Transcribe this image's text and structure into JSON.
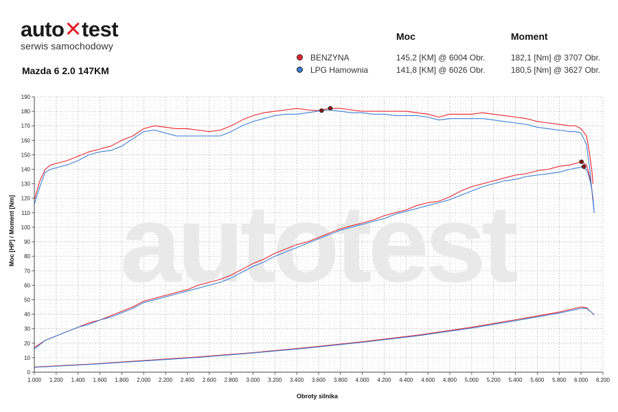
{
  "logo": {
    "main_before": "auto",
    "main_mark": "✕",
    "main_after": "test",
    "subtitle": "serwis samochodowy"
  },
  "car_title": "Mazda 6 2.0 147KM",
  "legend": {
    "header_moc": "Moc",
    "header_moment": "Moment",
    "rows": [
      {
        "name": "BENZYNA",
        "color": "#e8232d",
        "moc": "145,2 [KM] @ 6004 Obr.",
        "moment": "182,1 [Nm] @ 3707 Obr."
      },
      {
        "name": "LPG Hamownia",
        "color": "#3a7fd5",
        "moc": "141,8 [KM] @ 6026 Obr.",
        "moment": "180,5 [Nm] @ 3627 Obr."
      }
    ]
  },
  "watermark": "autotest",
  "chart_data": {
    "type": "line",
    "xlabel": "Obroty silnika",
    "ylabel": "Moc [HP] / Moment [Nm]",
    "xlim": [
      1000,
      6200
    ],
    "ylim": [
      0,
      190
    ],
    "x_ticks": [
      "1.000",
      "1.200",
      "1.400",
      "1.600",
      "1.800",
      "2.000",
      "2.200",
      "2.400",
      "2.600",
      "2.800",
      "3.000",
      "3.200",
      "3.400",
      "3.600",
      "3.800",
      "4.000",
      "4.200",
      "4.400",
      "4.600",
      "4.800",
      "5.000",
      "5.200",
      "5.400",
      "5.600",
      "5.800",
      "6.000",
      "6.200"
    ],
    "y_ticks": [
      "0",
      "10",
      "20",
      "30",
      "40",
      "50",
      "60",
      "70",
      "80",
      "90",
      "100",
      "110",
      "120",
      "130",
      "140",
      "150",
      "160",
      "170",
      "180",
      "190"
    ],
    "grid": true,
    "series": [
      {
        "name": "BENZYNA",
        "quantity": "Moment",
        "color": "#e8232d",
        "points": [
          [
            1000,
            119
          ],
          [
            1050,
            132
          ],
          [
            1100,
            140
          ],
          [
            1150,
            143
          ],
          [
            1200,
            144
          ],
          [
            1300,
            146
          ],
          [
            1400,
            149
          ],
          [
            1500,
            152
          ],
          [
            1600,
            154
          ],
          [
            1700,
            156
          ],
          [
            1800,
            160
          ],
          [
            1900,
            163
          ],
          [
            2000,
            168
          ],
          [
            2100,
            170
          ],
          [
            2200,
            169
          ],
          [
            2300,
            168
          ],
          [
            2400,
            168
          ],
          [
            2500,
            167
          ],
          [
            2600,
            166
          ],
          [
            2700,
            167
          ],
          [
            2800,
            170
          ],
          [
            2900,
            174
          ],
          [
            3000,
            177
          ],
          [
            3100,
            179
          ],
          [
            3200,
            180
          ],
          [
            3300,
            181
          ],
          [
            3400,
            182
          ],
          [
            3500,
            181
          ],
          [
            3600,
            180.5
          ],
          [
            3707,
            182.1
          ],
          [
            3800,
            182
          ],
          [
            3900,
            181
          ],
          [
            4000,
            180
          ],
          [
            4100,
            180
          ],
          [
            4200,
            180
          ],
          [
            4300,
            180
          ],
          [
            4400,
            180
          ],
          [
            4500,
            179
          ],
          [
            4600,
            178
          ],
          [
            4700,
            176
          ],
          [
            4800,
            178
          ],
          [
            4900,
            178
          ],
          [
            5000,
            178
          ],
          [
            5100,
            179
          ],
          [
            5200,
            178
          ],
          [
            5300,
            177
          ],
          [
            5400,
            176
          ],
          [
            5500,
            175
          ],
          [
            5600,
            173
          ],
          [
            5700,
            172
          ],
          [
            5800,
            171
          ],
          [
            5900,
            170
          ],
          [
            5950,
            170
          ],
          [
            6000,
            168
          ],
          [
            6050,
            163
          ],
          [
            6080,
            150
          ],
          [
            6100,
            138
          ],
          [
            6110,
            130
          ]
        ]
      },
      {
        "name": "LPG Hamownia",
        "quantity": "Moment",
        "color": "#3a7fd5",
        "points": [
          [
            1000,
            116
          ],
          [
            1050,
            128
          ],
          [
            1100,
            138
          ],
          [
            1150,
            140
          ],
          [
            1200,
            141
          ],
          [
            1300,
            143
          ],
          [
            1400,
            146
          ],
          [
            1500,
            150
          ],
          [
            1600,
            152
          ],
          [
            1700,
            153
          ],
          [
            1800,
            156
          ],
          [
            1900,
            161
          ],
          [
            2000,
            166
          ],
          [
            2100,
            167
          ],
          [
            2200,
            165
          ],
          [
            2300,
            163
          ],
          [
            2400,
            163
          ],
          [
            2500,
            163
          ],
          [
            2600,
            163
          ],
          [
            2700,
            163
          ],
          [
            2800,
            166
          ],
          [
            2900,
            170
          ],
          [
            3000,
            173
          ],
          [
            3100,
            175
          ],
          [
            3200,
            177
          ],
          [
            3300,
            178
          ],
          [
            3400,
            178
          ],
          [
            3500,
            179
          ],
          [
            3627,
            180.5
          ],
          [
            3700,
            181
          ],
          [
            3800,
            180
          ],
          [
            3900,
            179
          ],
          [
            4000,
            179
          ],
          [
            4100,
            178
          ],
          [
            4200,
            178
          ],
          [
            4300,
            177
          ],
          [
            4400,
            177
          ],
          [
            4500,
            177
          ],
          [
            4600,
            176
          ],
          [
            4700,
            174
          ],
          [
            4800,
            175
          ],
          [
            4900,
            175
          ],
          [
            5000,
            175
          ],
          [
            5100,
            175
          ],
          [
            5200,
            174
          ],
          [
            5300,
            173
          ],
          [
            5400,
            172
          ],
          [
            5500,
            171
          ],
          [
            5600,
            169
          ],
          [
            5700,
            168
          ],
          [
            5800,
            167
          ],
          [
            5900,
            166
          ],
          [
            5950,
            166
          ],
          [
            6000,
            165
          ],
          [
            6050,
            157
          ],
          [
            6080,
            140
          ],
          [
            6100,
            125
          ],
          [
            6120,
            110
          ]
        ]
      },
      {
        "name": "BENZYNA",
        "quantity": "Moc",
        "color": "#e8232d",
        "points": [
          [
            1000,
            17
          ],
          [
            1100,
            22
          ],
          [
            1200,
            25
          ],
          [
            1300,
            28
          ],
          [
            1400,
            31
          ],
          [
            1500,
            34
          ],
          [
            1600,
            36
          ],
          [
            1700,
            39
          ],
          [
            1800,
            42
          ],
          [
            1900,
            45
          ],
          [
            2000,
            49
          ],
          [
            2100,
            51
          ],
          [
            2200,
            53
          ],
          [
            2300,
            55
          ],
          [
            2400,
            57
          ],
          [
            2500,
            60
          ],
          [
            2600,
            62
          ],
          [
            2700,
            64
          ],
          [
            2800,
            67
          ],
          [
            2900,
            71
          ],
          [
            3000,
            75
          ],
          [
            3100,
            78
          ],
          [
            3200,
            82
          ],
          [
            3300,
            85
          ],
          [
            3400,
            88
          ],
          [
            3500,
            90
          ],
          [
            3600,
            93
          ],
          [
            3700,
            96
          ],
          [
            3800,
            99
          ],
          [
            3900,
            101
          ],
          [
            4000,
            103
          ],
          [
            4100,
            105
          ],
          [
            4200,
            108
          ],
          [
            4300,
            110
          ],
          [
            4400,
            112
          ],
          [
            4500,
            115
          ],
          [
            4600,
            117
          ],
          [
            4700,
            118
          ],
          [
            4800,
            121
          ],
          [
            4900,
            125
          ],
          [
            5000,
            128
          ],
          [
            5100,
            130
          ],
          [
            5200,
            132
          ],
          [
            5300,
            134
          ],
          [
            5400,
            136
          ],
          [
            5500,
            137
          ],
          [
            5600,
            139
          ],
          [
            5700,
            140
          ],
          [
            5800,
            142
          ],
          [
            5900,
            143
          ],
          [
            6004,
            145.2
          ],
          [
            6050,
            143
          ],
          [
            6080,
            135
          ],
          [
            6100,
            125
          ],
          [
            6110,
            118
          ]
        ]
      },
      {
        "name": "LPG Hamownia",
        "quantity": "Moc",
        "color": "#3a7fd5",
        "points": [
          [
            1000,
            16
          ],
          [
            1100,
            22
          ],
          [
            1200,
            25
          ],
          [
            1300,
            28
          ],
          [
            1400,
            31
          ],
          [
            1500,
            33
          ],
          [
            1600,
            36
          ],
          [
            1700,
            38
          ],
          [
            1800,
            41
          ],
          [
            1900,
            44
          ],
          [
            2000,
            48
          ],
          [
            2100,
            50
          ],
          [
            2200,
            52
          ],
          [
            2300,
            54
          ],
          [
            2400,
            56
          ],
          [
            2500,
            58
          ],
          [
            2600,
            60
          ],
          [
            2700,
            62
          ],
          [
            2800,
            65
          ],
          [
            2900,
            69
          ],
          [
            3000,
            73
          ],
          [
            3100,
            76
          ],
          [
            3200,
            80
          ],
          [
            3300,
            83
          ],
          [
            3400,
            86
          ],
          [
            3500,
            89
          ],
          [
            3600,
            92
          ],
          [
            3700,
            95
          ],
          [
            3800,
            98
          ],
          [
            3900,
            100
          ],
          [
            4000,
            102
          ],
          [
            4100,
            104
          ],
          [
            4200,
            106
          ],
          [
            4300,
            109
          ],
          [
            4400,
            111
          ],
          [
            4500,
            113
          ],
          [
            4600,
            115
          ],
          [
            4700,
            117
          ],
          [
            4800,
            119
          ],
          [
            4900,
            122
          ],
          [
            5000,
            125
          ],
          [
            5100,
            128
          ],
          [
            5200,
            130
          ],
          [
            5300,
            132
          ],
          [
            5400,
            133
          ],
          [
            5500,
            135
          ],
          [
            5600,
            136
          ],
          [
            5700,
            137
          ],
          [
            5800,
            138
          ],
          [
            5900,
            140
          ],
          [
            6026,
            141.8
          ],
          [
            6060,
            138
          ],
          [
            6090,
            130
          ],
          [
            6110,
            120
          ],
          [
            6120,
            110
          ]
        ]
      },
      {
        "name": "BENZYNA",
        "quantity": "Straty",
        "color": "#e8232d",
        "points": [
          [
            1000,
            3.5
          ],
          [
            1500,
            5.5
          ],
          [
            2000,
            8
          ],
          [
            2500,
            10.5
          ],
          [
            3000,
            13.5
          ],
          [
            3500,
            17
          ],
          [
            4000,
            21
          ],
          [
            4500,
            25.5
          ],
          [
            5000,
            31
          ],
          [
            5500,
            37.5
          ],
          [
            5800,
            41.5
          ],
          [
            6000,
            45
          ],
          [
            6050,
            44.5
          ],
          [
            6100,
            41
          ],
          [
            6120,
            39.5
          ]
        ]
      },
      {
        "name": "LPG Hamownia",
        "quantity": "Straty",
        "color": "#3a7fd5",
        "points": [
          [
            1000,
            3.3
          ],
          [
            1500,
            5.3
          ],
          [
            2000,
            7.7
          ],
          [
            2500,
            10.2
          ],
          [
            3000,
            13.2
          ],
          [
            3500,
            16.7
          ],
          [
            4000,
            20.6
          ],
          [
            4500,
            25
          ],
          [
            5000,
            30.4
          ],
          [
            5500,
            36.8
          ],
          [
            5800,
            40.8
          ],
          [
            6000,
            44
          ],
          [
            6050,
            44
          ],
          [
            6100,
            41
          ],
          [
            6120,
            39.5
          ]
        ]
      }
    ],
    "markers": [
      {
        "series": "BENZYNA",
        "x": 3707,
        "y": 182.1
      },
      {
        "series": "LPG Hamownia",
        "x": 3627,
        "y": 180.5
      },
      {
        "series": "BENZYNA",
        "x": 6004,
        "y": 145.2
      },
      {
        "series": "LPG Hamownia",
        "x": 6026,
        "y": 141.8
      }
    ]
  }
}
